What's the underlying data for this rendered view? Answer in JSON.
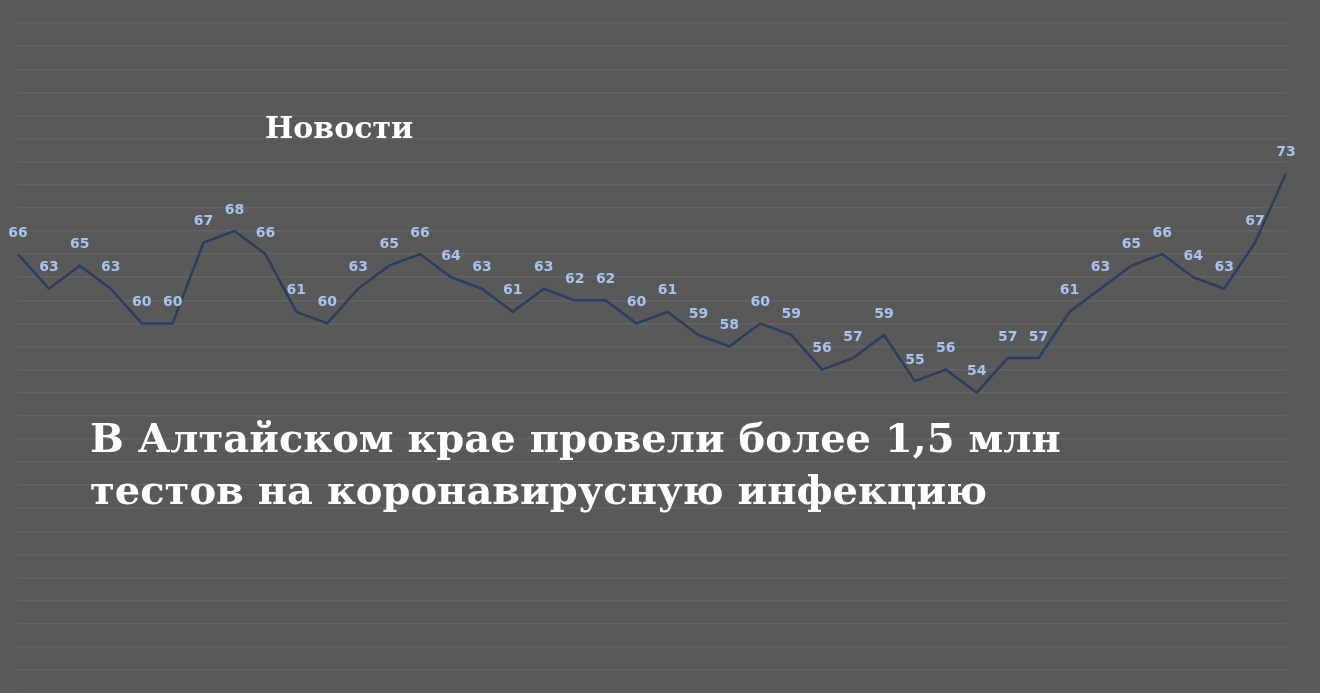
{
  "chart_data": {
    "type": "line",
    "title": "В Алтайском крае провели более 1,5 млн тестов на коронавирусную инфекцию",
    "annotations": [
      "Новости"
    ],
    "categories": [
      null,
      null,
      null,
      null,
      null,
      null,
      null,
      null,
      null,
      null,
      null,
      null,
      null,
      null,
      null,
      null,
      null,
      null,
      null,
      null,
      null,
      null,
      null,
      null,
      null,
      null,
      null,
      null,
      null,
      null,
      null,
      null,
      null,
      null,
      null,
      null,
      null,
      null,
      null,
      null,
      null,
      null
    ],
    "series": [
      {
        "color": "#2b3d5e",
        "values": [
          66,
          63,
          65,
          63,
          60,
          60,
          67,
          68,
          66,
          61,
          60,
          63,
          65,
          66,
          64,
          63,
          61,
          63,
          62,
          62,
          60,
          61,
          59,
          58,
          60,
          59,
          56,
          57,
          59,
          55,
          56,
          54,
          57,
          57,
          61,
          63,
          65,
          66,
          64,
          63,
          67,
          73
        ]
      }
    ],
    "ylim": [
      28,
      88
    ],
    "yticks": [
      {
        "value": 28,
        "label": null
      },
      {
        "value": 30,
        "label": null
      },
      {
        "value": 32,
        "label": null
      },
      {
        "value": 34,
        "label": null
      },
      {
        "value": 36,
        "label": null
      },
      {
        "value": 38,
        "label": null
      },
      {
        "value": 40,
        "label": null
      },
      {
        "value": 42,
        "label": null
      },
      {
        "value": 44,
        "label": null
      },
      {
        "value": 46,
        "label": null
      },
      {
        "value": 48,
        "label": null
      },
      {
        "value": 50,
        "label": null
      },
      {
        "value": 52,
        "label": null
      },
      {
        "value": 54,
        "label": null
      },
      {
        "value": 56,
        "label": null
      },
      {
        "value": 58,
        "label": null
      },
      {
        "value": 60,
        "label": null
      },
      {
        "value": 62,
        "label": null
      },
      {
        "value": 64,
        "label": null
      },
      {
        "value": 66,
        "label": null
      },
      {
        "value": 68,
        "label": null
      },
      {
        "value": 70,
        "label": null
      },
      {
        "value": 72,
        "label": null
      },
      {
        "value": 74,
        "label": null
      },
      {
        "value": 76,
        "label": null
      },
      {
        "value": 78,
        "label": null
      },
      {
        "value": 80,
        "label": null
      },
      {
        "value": 82,
        "label": null
      },
      {
        "value": 84,
        "label": null
      },
      {
        "value": 86,
        "label": null
      },
      {
        "value": 88,
        "label": null
      }
    ],
    "grid": "y",
    "tick_labels": false,
    "marker": "none",
    "line_style": "solid",
    "data_labels": true
  }
}
